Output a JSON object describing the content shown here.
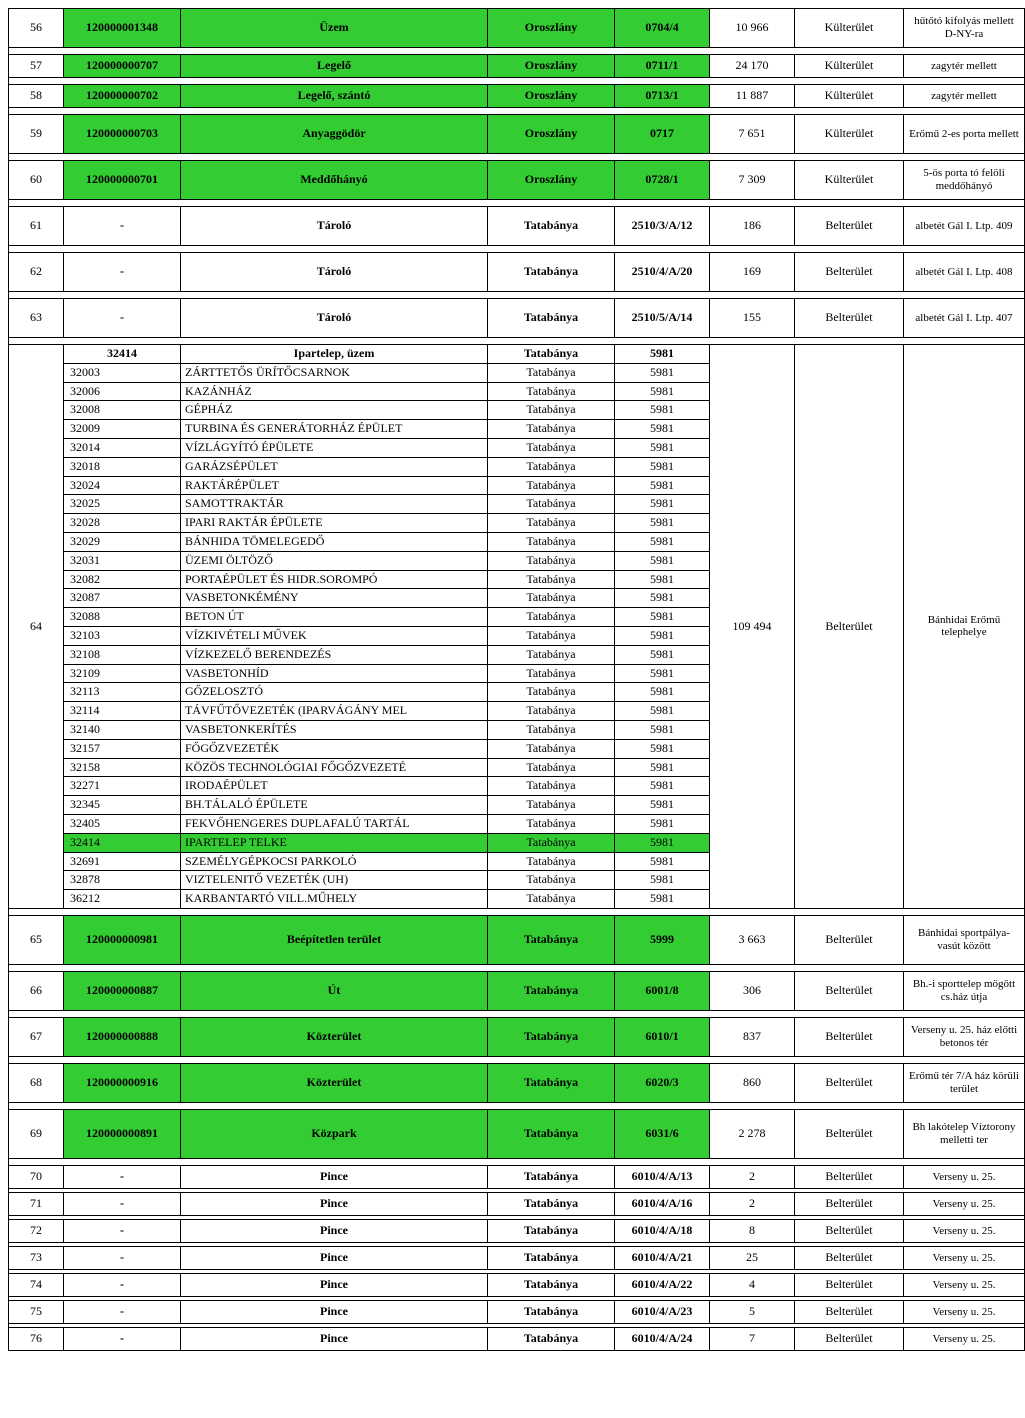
{
  "colors": {
    "green": "#33cc33"
  },
  "rows": [
    {
      "n": "56",
      "id": "120000001348",
      "name": "Üzem",
      "city": "Oroszlány",
      "code": "0704/4",
      "area": "10 966",
      "kat": "Külterület",
      "note": "hűtőtó kifolyás mellett D-NY-ra",
      "g": [
        "id",
        "name",
        "city",
        "code"
      ],
      "h": "tall"
    },
    {
      "gap": true
    },
    {
      "n": "57",
      "id": "120000000707",
      "name": "Legelő",
      "city": "Oroszlány",
      "code": "0711/1",
      "area": "24 170",
      "kat": "Külterület",
      "note": "zagytér mellett",
      "g": [
        "id",
        "name",
        "city",
        "code"
      ],
      "h": "short"
    },
    {
      "gap": true
    },
    {
      "n": "58",
      "id": "120000000702",
      "name": "Legelő, szántó",
      "city": "Oroszlány",
      "code": "0713/1",
      "area": "11 887",
      "kat": "Külterület",
      "note": "zagytér mellett",
      "g": [
        "id",
        "name",
        "city",
        "code"
      ],
      "h": "short"
    },
    {
      "gap": true
    },
    {
      "n": "59",
      "id": "120000000703",
      "name": "Anyaggödör",
      "city": "Oroszlány",
      "code": "0717",
      "area": "7 651",
      "kat": "Külterület",
      "note": "Erőmű 2-es porta mellett",
      "g": [
        "id",
        "name",
        "city",
        "code"
      ],
      "h": "tall"
    },
    {
      "gap": true
    },
    {
      "n": "60",
      "id": "120000000701",
      "name": "Meddőhányó",
      "city": "Oroszlány",
      "code": "0728/1",
      "area": "7 309",
      "kat": "Külterület",
      "note": "5-ös porta tó felöli meddőhányó",
      "g": [
        "id",
        "name",
        "city",
        "code"
      ],
      "h": "tall"
    },
    {
      "gap": true
    },
    {
      "n": "61",
      "id": "-",
      "name": "Tároló",
      "city": "Tatabánya",
      "code": "2510/3/A/12",
      "area": "186",
      "kat": "Belterület",
      "note": "albetét Gál I. Ltp. 409",
      "g": [],
      "h": "tall"
    },
    {
      "gap": true
    },
    {
      "n": "62",
      "id": "-",
      "name": "Tároló",
      "city": "Tatabánya",
      "code": "2510/4/A/20",
      "area": "169",
      "kat": "Belterület",
      "note": "albetét Gál I. Ltp. 408",
      "g": [],
      "h": "tall"
    },
    {
      "gap": true
    },
    {
      "n": "63",
      "id": "-",
      "name": "Tároló",
      "city": "Tatabánya",
      "code": "2510/5/A/14",
      "area": "155",
      "kat": "Belterület",
      "note": "albetét Gál I. Ltp. 407",
      "g": [],
      "h": "tall"
    },
    {
      "gap": true
    }
  ],
  "block64": {
    "n": "64",
    "header": {
      "id": "32414",
      "name": "Ipartelep, üzem",
      "city": "Tatabánya",
      "code": "5981"
    },
    "area": "109 494",
    "kat": "Belterület",
    "note": "Bánhidai Erőmű telephelye",
    "subs": [
      {
        "id": "32003",
        "name": "ZÁRTTETŐS ÜRÍTŐCSARNOK",
        "city": "Tatabánya",
        "code": "5981"
      },
      {
        "id": "32006",
        "name": "KAZÁNHÁZ",
        "city": "Tatabánya",
        "code": "5981"
      },
      {
        "id": "32008",
        "name": "GÉPHÁZ",
        "city": "Tatabánya",
        "code": "5981"
      },
      {
        "id": "32009",
        "name": "TURBINA ÉS GENERÁTORHÁZ ÉPÜLET",
        "city": "Tatabánya",
        "code": "5981"
      },
      {
        "id": "32014",
        "name": "VÍZLÁGYÍTÓ ÉPÜLETE",
        "city": "Tatabánya",
        "code": "5981"
      },
      {
        "id": "32018",
        "name": "GARÁZSÉPÜLET",
        "city": "Tatabánya",
        "code": "5981"
      },
      {
        "id": "32024",
        "name": "RAKTÁRÉPÜLET",
        "city": "Tatabánya",
        "code": "5981"
      },
      {
        "id": "32025",
        "name": "SAMOTTRAKTÁR",
        "city": "Tatabánya",
        "code": "5981"
      },
      {
        "id": "32028",
        "name": "IPARI RAKTÁR ÉPÜLETE",
        "city": "Tatabánya",
        "code": "5981"
      },
      {
        "id": "32029",
        "name": "BÁNHIDA TÖMELEGEDŐ",
        "city": "Tatabánya",
        "code": "5981"
      },
      {
        "id": "32031",
        "name": "ÜZEMI ÖLTÖZŐ",
        "city": "Tatabánya",
        "code": "5981"
      },
      {
        "id": "32082",
        "name": "PORTAÉPÜLET ÉS HIDR.SOROMPÓ",
        "city": "Tatabánya",
        "code": "5981"
      },
      {
        "id": "32087",
        "name": "VASBETONKÉMÉNY",
        "city": "Tatabánya",
        "code": "5981"
      },
      {
        "id": "32088",
        "name": "BETON ÚT",
        "city": "Tatabánya",
        "code": "5981"
      },
      {
        "id": "32103",
        "name": "VÍZKIVÉTELI MŰVEK",
        "city": "Tatabánya",
        "code": "5981"
      },
      {
        "id": "32108",
        "name": "VÍZKEZELŐ BERENDEZÉS",
        "city": "Tatabánya",
        "code": "5981"
      },
      {
        "id": "32109",
        "name": "VASBETONHÍD",
        "city": "Tatabánya",
        "code": "5981"
      },
      {
        "id": "32113",
        "name": "GŐZELOSZTÓ",
        "city": "Tatabánya",
        "code": "5981"
      },
      {
        "id": "32114",
        "name": "TÁVFŰTŐVEZETÉK (IPARVÁGÁNY MEL",
        "city": "Tatabánya",
        "code": "5981"
      },
      {
        "id": "32140",
        "name": "VASBETONKERÍTÉS",
        "city": "Tatabánya",
        "code": "5981"
      },
      {
        "id": "32157",
        "name": "FŐGŐZVEZETÉK",
        "city": "Tatabánya",
        "code": "5981"
      },
      {
        "id": "32158",
        "name": "KÖZÖS TECHNOLÓGIAI FŐGŐZVEZETÉ",
        "city": "Tatabánya",
        "code": "5981"
      },
      {
        "id": "32271",
        "name": "IRODAÉPÜLET",
        "city": "Tatabánya",
        "code": "5981"
      },
      {
        "id": "32345",
        "name": "BH.TÁLALÓ ÉPÜLETE",
        "city": "Tatabánya",
        "code": "5981"
      },
      {
        "id": "32405",
        "name": "FEKVŐHENGERES DUPLAFALÚ TARTÁL",
        "city": "Tatabánya",
        "code": "5981"
      },
      {
        "id": "32414",
        "name": "IPARTELEP TELKE",
        "city": "Tatabánya",
        "code": "5981",
        "g": true
      },
      {
        "id": "32691",
        "name": "SZEMÉLYGÉPKOCSI PARKOLÓ",
        "city": "Tatabánya",
        "code": "5981"
      },
      {
        "id": "32878",
        "name": "VIZTELENITŐ VEZETÉK (UH)",
        "city": "Tatabánya",
        "code": "5981"
      },
      {
        "id": "36212",
        "name": "KARBANTARTÓ VILL.MŰHELY",
        "city": "Tatabánya",
        "code": "5981"
      }
    ]
  },
  "rows2": [
    {
      "n": "65",
      "id": "120000000981",
      "name": "Beépítetlen terület",
      "city": "Tatabánya",
      "code": "5999",
      "area": "3 663",
      "kat": "Belterület",
      "note": "Bánhidai sportpálya-vasút között",
      "g": [
        "id",
        "name",
        "city",
        "code"
      ],
      "h": "vtall"
    },
    {
      "gap": true
    },
    {
      "n": "66",
      "id": "120000000887",
      "name": "Út",
      "city": "Tatabánya",
      "code": "6001/8",
      "area": "306",
      "kat": "Belterület",
      "note": "Bh.-i sporttelep mögött cs.ház útja",
      "g": [
        "id",
        "name",
        "city",
        "code"
      ],
      "h": "tall"
    },
    {
      "gap": true
    },
    {
      "n": "67",
      "id": "120000000888",
      "name": "Közterület",
      "city": "Tatabánya",
      "code": "6010/1",
      "area": "837",
      "kat": "Belterület",
      "note": "Verseny u. 25. ház előtti betonos tér",
      "g": [
        "id",
        "name",
        "city",
        "code"
      ],
      "h": "tall"
    },
    {
      "gap": true
    },
    {
      "n": "68",
      "id": "120000000916",
      "name": "Közterület",
      "city": "Tatabánya",
      "code": "6020/3",
      "area": "860",
      "kat": "Belterület",
      "note": "Erőmű tér 7/A ház körüli terület",
      "g": [
        "id",
        "name",
        "city",
        "code"
      ],
      "h": "tall"
    },
    {
      "gap": true
    },
    {
      "n": "69",
      "id": "120000000891",
      "name": "Közpark",
      "city": "Tatabánya",
      "code": "6031/6",
      "area": "2 278",
      "kat": "Belterület",
      "note": "Bh lakótelep Víztorony melletti ter",
      "g": [
        "id",
        "name",
        "city",
        "code"
      ],
      "h": "vtall"
    },
    {
      "gap": true
    },
    {
      "n": "70",
      "id": "-",
      "name": "Pince",
      "city": "Tatabánya",
      "code": "6010/4/A/13",
      "area": "2",
      "kat": "Belterület",
      "note": "Verseny u. 25.",
      "g": [],
      "h": "short"
    },
    {
      "gap": "sm"
    },
    {
      "n": "71",
      "id": "-",
      "name": "Pince",
      "city": "Tatabánya",
      "code": "6010/4/A/16",
      "area": "2",
      "kat": "Belterület",
      "note": "Verseny u. 25.",
      "g": [],
      "h": "short"
    },
    {
      "gap": "sm"
    },
    {
      "n": "72",
      "id": "-",
      "name": "Pince",
      "city": "Tatabánya",
      "code": "6010/4/A/18",
      "area": "8",
      "kat": "Belterület",
      "note": "Verseny u. 25.",
      "g": [],
      "h": "short"
    },
    {
      "gap": "sm"
    },
    {
      "n": "73",
      "id": "-",
      "name": "Pince",
      "city": "Tatabánya",
      "code": "6010/4/A/21",
      "area": "25",
      "kat": "Belterület",
      "note": "Verseny u. 25.",
      "g": [],
      "h": "short"
    },
    {
      "gap": "sm"
    },
    {
      "n": "74",
      "id": "-",
      "name": "Pince",
      "city": "Tatabánya",
      "code": "6010/4/A/22",
      "area": "4",
      "kat": "Belterület",
      "note": "Verseny u. 25.",
      "g": [],
      "h": "short"
    },
    {
      "gap": "sm"
    },
    {
      "n": "75",
      "id": "-",
      "name": "Pince",
      "city": "Tatabánya",
      "code": "6010/4/A/23",
      "area": "5",
      "kat": "Belterület",
      "note": "Verseny u. 25.",
      "g": [],
      "h": "short"
    },
    {
      "gap": "sm"
    },
    {
      "n": "76",
      "id": "-",
      "name": "Pince",
      "city": "Tatabánya",
      "code": "6010/4/A/24",
      "area": "7",
      "kat": "Belterület",
      "note": "Verseny u. 25.",
      "g": [],
      "h": "short"
    }
  ]
}
